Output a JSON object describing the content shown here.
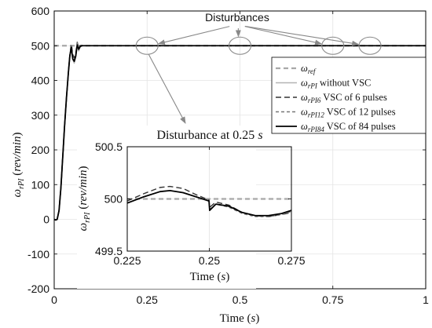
{
  "chart_data": [
    {
      "type": "line",
      "xlabel": "Time (s)",
      "ylabel": "ω rPI (rev/min)",
      "xlim": [
        0,
        1
      ],
      "ylim": [
        -200,
        600
      ],
      "xticks": [
        "0",
        "0.25",
        "0.5",
        "0.75",
        "1"
      ],
      "xtick_values": [
        0,
        0.25,
        0.5,
        0.75,
        1
      ],
      "yticks": [
        "-200",
        "-100",
        "0",
        "100",
        "200",
        "300",
        "400",
        "500",
        "600"
      ],
      "ytick_values": [
        -200,
        -100,
        0,
        100,
        200,
        300,
        400,
        500,
        600
      ],
      "grid": true,
      "legend_position": "right",
      "annotation": "Disturbances",
      "disturbance_times": [
        0.25,
        0.5,
        0.75,
        0.85
      ],
      "series": [
        {
          "name_base": "ω",
          "name_sub": "ref",
          "name_rest": "",
          "color": "#a8a8a8",
          "dash": "6,4",
          "width": 2.2,
          "x": [
            0,
            1
          ],
          "y": [
            500,
            500
          ]
        },
        {
          "name_base": "ω",
          "name_sub": "rPI",
          "name_rest": " without VSC",
          "color": "#b4b4b4",
          "dash": "",
          "width": 1.6,
          "x": [
            0,
            0.004,
            0.008,
            0.013,
            0.018,
            0.023,
            0.028,
            0.033,
            0.038,
            0.042,
            0.046,
            0.05,
            0.054,
            0.058,
            0.062,
            0.066,
            0.07,
            0.075,
            0.085,
            0.1,
            0.25,
            0.5,
            0.75,
            1
          ],
          "y": [
            0,
            -2,
            0,
            25,
            90,
            180,
            270,
            350,
            420,
            470,
            500,
            460,
            450,
            470,
            505,
            485,
            497,
            500,
            500,
            500,
            500,
            500,
            500,
            500
          ]
        },
        {
          "name_base": "ω",
          "name_sub": "rPI6",
          "name_rest": " VSC of 6 pulses",
          "color": "#333333",
          "dash": "7,4",
          "width": 1.5,
          "x": [
            0,
            0.004,
            0.008,
            0.013,
            0.018,
            0.023,
            0.028,
            0.033,
            0.038,
            0.042,
            0.046,
            0.05,
            0.054,
            0.058,
            0.062,
            0.066,
            0.07,
            0.075,
            0.085,
            0.1,
            0.25,
            0.5,
            0.75,
            1
          ],
          "y": [
            0,
            -2,
            0,
            25,
            90,
            180,
            270,
            350,
            420,
            470,
            505,
            475,
            465,
            478,
            510,
            492,
            500,
            501,
            500,
            500,
            500,
            500,
            500,
            500
          ]
        },
        {
          "name_base": "ω",
          "name_sub": "rPI12",
          "name_rest": " VSC of 12 pulses",
          "color": "#777777",
          "dash": "4,3",
          "width": 1.6,
          "x": [
            0,
            0.004,
            0.008,
            0.013,
            0.018,
            0.023,
            0.028,
            0.033,
            0.038,
            0.042,
            0.046,
            0.05,
            0.054,
            0.058,
            0.062,
            0.066,
            0.07,
            0.075,
            0.085,
            0.1,
            0.25,
            0.5,
            0.75,
            1
          ],
          "y": [
            0,
            -2,
            0,
            25,
            90,
            180,
            270,
            350,
            420,
            470,
            500,
            468,
            458,
            472,
            508,
            488,
            498,
            500,
            500,
            500,
            500,
            500,
            500,
            500
          ]
        },
        {
          "name_base": "ω",
          "name_sub": "rPI84",
          "name_rest": " VSC of 84 pulses",
          "color": "#000000",
          "dash": "",
          "width": 1.8,
          "x": [
            0,
            0.004,
            0.008,
            0.013,
            0.018,
            0.023,
            0.028,
            0.033,
            0.038,
            0.042,
            0.046,
            0.05,
            0.054,
            0.058,
            0.062,
            0.066,
            0.07,
            0.075,
            0.085,
            0.1,
            0.25,
            0.5,
            0.75,
            1
          ],
          "y": [
            0,
            -2,
            0,
            25,
            90,
            180,
            270,
            350,
            420,
            470,
            495,
            462,
            455,
            470,
            502,
            490,
            498,
            500,
            500,
            500,
            500,
            500,
            500,
            500
          ]
        }
      ]
    },
    {
      "type": "line",
      "title": "Disturbance at 0.25 s",
      "title_base": "Disturbance at 0.25 ",
      "title_unit": "s",
      "xlabel": "Time (s)",
      "ylabel": "ω rPI (rev/min)",
      "xlim": [
        0.225,
        0.275
      ],
      "ylim": [
        499.5,
        500.5
      ],
      "xticks": [
        "0.225",
        "0.25",
        "0.275"
      ],
      "xtick_values": [
        0.225,
        0.25,
        0.275
      ],
      "yticks": [
        "499.5",
        "500",
        "500.5"
      ],
      "ytick_values": [
        499.5,
        500,
        500.5
      ],
      "grid": true,
      "series": [
        {
          "name": "ref",
          "color": "#a8a8a8",
          "dash": "6,4",
          "width": 2.2,
          "x": [
            0.225,
            0.275
          ],
          "y": [
            500,
            500
          ]
        },
        {
          "name": "rPI6",
          "color": "#333333",
          "dash": "7,4",
          "width": 1.4,
          "x": [
            0.225,
            0.23,
            0.235,
            0.238,
            0.242,
            0.246,
            0.2499,
            0.2501,
            0.252,
            0.256,
            0.26,
            0.264,
            0.268,
            0.272,
            0.275
          ],
          "y": [
            499.98,
            500.05,
            500.11,
            500.12,
            500.1,
            500.04,
            499.99,
            499.92,
            499.97,
            499.94,
            499.87,
            499.84,
            499.83,
            499.85,
            499.87
          ]
        },
        {
          "name": "rPI12",
          "color": "#777777",
          "dash": "4,3",
          "width": 1.4,
          "x": [
            0.225,
            0.23,
            0.235,
            0.238,
            0.242,
            0.246,
            0.2499,
            0.2501,
            0.252,
            0.256,
            0.26,
            0.264,
            0.268,
            0.272,
            0.275
          ],
          "y": [
            499.96,
            500.02,
            500.07,
            500.08,
            500.06,
            500.02,
            499.98,
            499.9,
            499.95,
            499.92,
            499.86,
            499.83,
            499.83,
            499.85,
            499.88
          ]
        },
        {
          "name": "rPI84",
          "color": "#000000",
          "dash": "",
          "width": 1.8,
          "x": [
            0.225,
            0.23,
            0.235,
            0.238,
            0.242,
            0.246,
            0.2499,
            0.2501,
            0.252,
            0.256,
            0.26,
            0.264,
            0.268,
            0.272,
            0.275
          ],
          "y": [
            499.96,
            500.02,
            500.07,
            500.08,
            500.06,
            500.02,
            499.98,
            499.89,
            499.95,
            499.93,
            499.87,
            499.84,
            499.84,
            499.86,
            499.89
          ]
        }
      ]
    }
  ]
}
